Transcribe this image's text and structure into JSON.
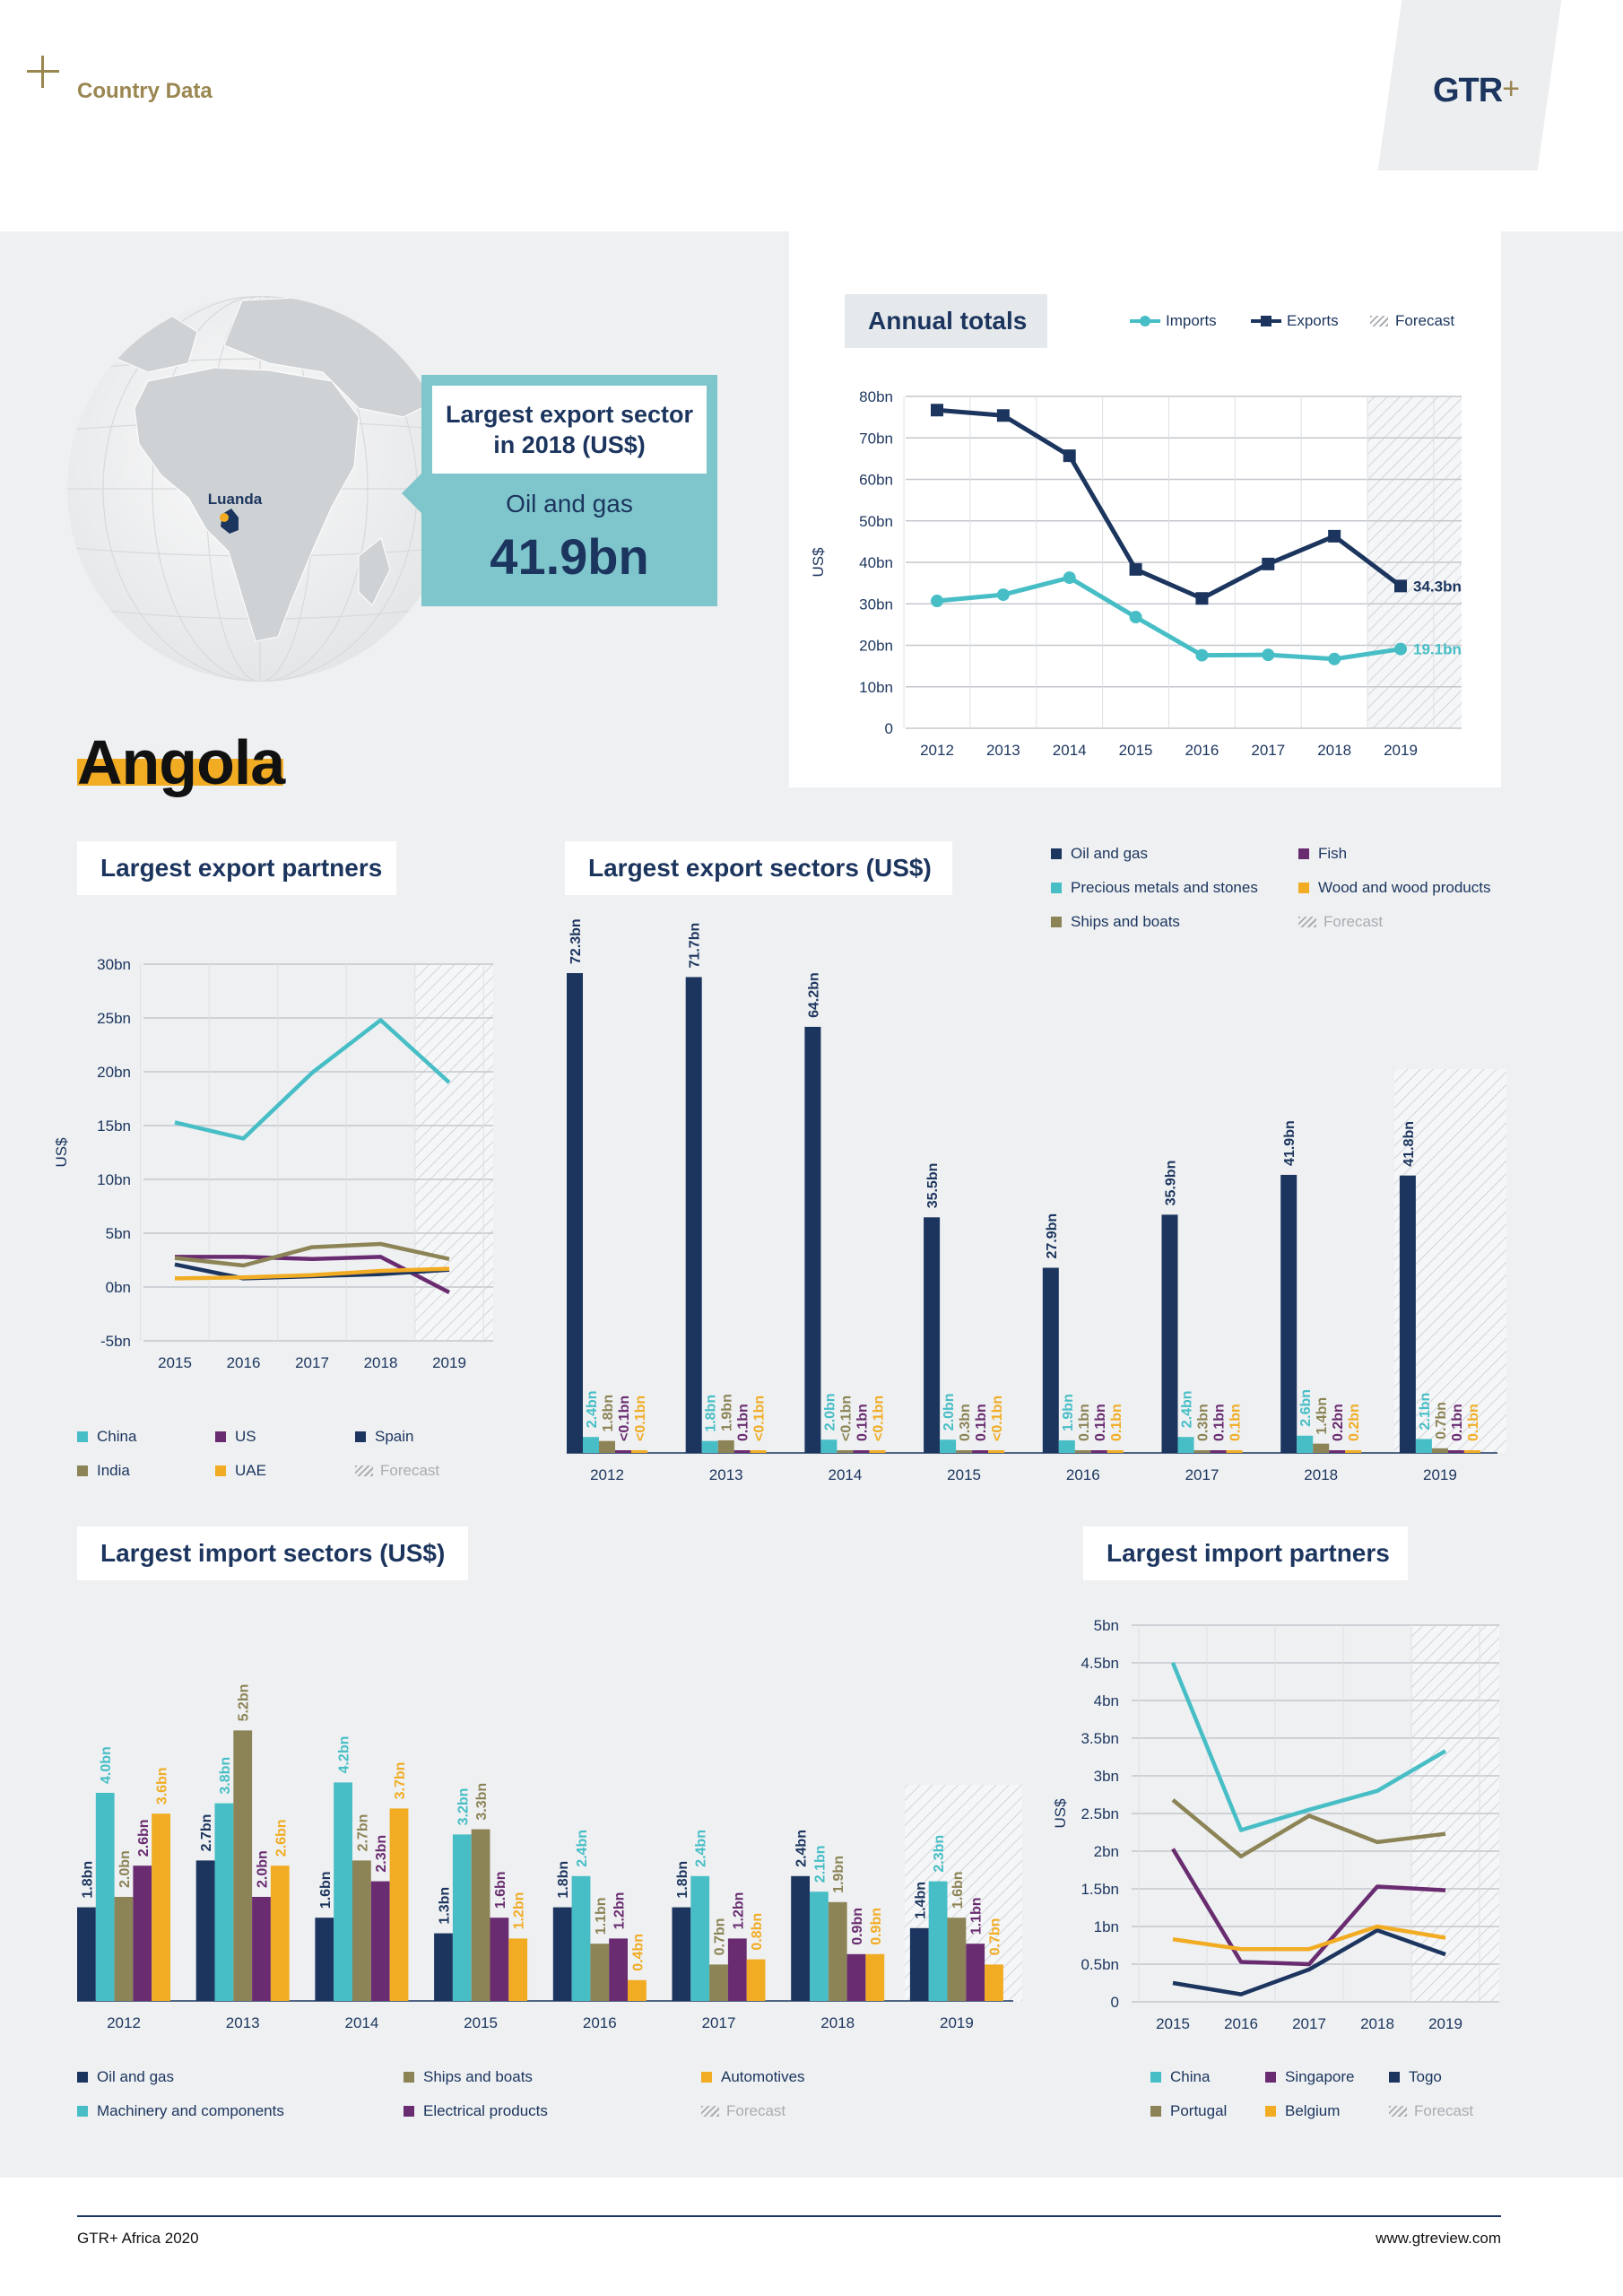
{
  "header": {
    "plus": "+",
    "section": "Country Data",
    "logo": "GTR",
    "logo_plus": "+"
  },
  "footer": {
    "left": "GTR+ Africa 2020",
    "right": "www.gtreview.com"
  },
  "country": "Angola",
  "map": {
    "city": "Luanda"
  },
  "callout": {
    "title_line1": "Largest export sector",
    "title_line2": "in 2018 (US$)",
    "sector": "Oil and gas",
    "value": "41.9bn"
  },
  "colors": {
    "navy": "#1c355e",
    "teal": "#47bec6",
    "olive": "#8c8456",
    "purple": "#6a2c70",
    "gold": "#f1ac24",
    "callout_bg": "#7ec6cc"
  },
  "labels": {
    "forecast": "Forecast",
    "usd": "US$"
  },
  "chart_data": [
    {
      "id": "annual_totals",
      "type": "line",
      "title": "Annual totals",
      "x": [
        "2012",
        "2013",
        "2014",
        "2015",
        "2016",
        "2017",
        "2018",
        "2019"
      ],
      "yticks": [
        "0",
        "10bn",
        "20bn",
        "30bn",
        "40bn",
        "50bn",
        "60bn",
        "70bn",
        "80bn"
      ],
      "ylim": [
        0,
        80
      ],
      "ylabel": "US$",
      "forecast_from": "2019",
      "series": [
        {
          "name": "Imports",
          "values": [
            30.7,
            32.2,
            36.3,
            26.8,
            17.6,
            17.7,
            16.7,
            19.1
          ],
          "color": "#47bec6",
          "marker": "circle",
          "end_label": "19.1bn"
        },
        {
          "name": "Exports",
          "values": [
            76.7,
            75.4,
            65.7,
            38.3,
            31.3,
            39.6,
            46.3,
            34.3
          ],
          "color": "#1c355e",
          "marker": "square",
          "end_label": "34.3bn"
        }
      ]
    },
    {
      "id": "export_partners",
      "type": "line",
      "title": "Largest export partners",
      "x": [
        "2015",
        "2016",
        "2017",
        "2018",
        "2019"
      ],
      "yticks": [
        "-5bn",
        "0bn",
        "5bn",
        "10bn",
        "15bn",
        "20bn",
        "25bn",
        "30bn"
      ],
      "ylim": [
        -5,
        30
      ],
      "ylabel": "US$",
      "forecast_from": "2019",
      "series": [
        {
          "name": "China",
          "values": [
            15.3,
            13.8,
            19.9,
            24.8,
            19.0
          ],
          "color": "#47bec6"
        },
        {
          "name": "US",
          "values": [
            2.8,
            2.8,
            2.6,
            2.8,
            -0.5
          ],
          "color": "#6a2c70"
        },
        {
          "name": "Spain",
          "values": [
            2.1,
            0.8,
            1.0,
            1.2,
            1.6
          ],
          "color": "#1c355e"
        },
        {
          "name": "India",
          "values": [
            2.7,
            2.0,
            3.7,
            4.0,
            2.6
          ],
          "color": "#8c8456"
        },
        {
          "name": "UAE",
          "values": [
            0.8,
            0.9,
            1.1,
            1.5,
            1.7
          ],
          "color": "#f1ac24"
        }
      ]
    },
    {
      "id": "export_sectors",
      "type": "bar",
      "title": "Largest export sectors (US$)",
      "categories": [
        "2012",
        "2013",
        "2014",
        "2015",
        "2016",
        "2017",
        "2018",
        "2019"
      ],
      "forecast_from": "2019",
      "series": [
        {
          "name": "Oil and gas",
          "color": "#1c355e",
          "values": [
            72.3,
            71.7,
            64.2,
            35.5,
            27.9,
            35.9,
            41.9,
            41.8
          ],
          "labels": [
            "72.3bn",
            "71.7bn",
            "64.2bn",
            "35.5bn",
            "27.9bn",
            "35.9bn",
            "41.9bn",
            "41.8bn"
          ]
        },
        {
          "name": "Precious metals and stones",
          "color": "#47bec6",
          "values": [
            2.4,
            1.8,
            2.0,
            2.0,
            1.9,
            2.4,
            2.6,
            2.1
          ],
          "labels": [
            "2.4bn",
            "1.8bn",
            "2.0bn",
            "2.0bn",
            "1.9bn",
            "2.4bn",
            "2.6bn",
            "2.1bn"
          ]
        },
        {
          "name": "Ships and boats",
          "color": "#8c8456",
          "values": [
            1.8,
            1.9,
            0.1,
            0.3,
            0.1,
            0.3,
            1.4,
            0.7
          ],
          "labels": [
            "1.8bn",
            "1.9bn",
            "<0.1bn",
            "0.3bn",
            "0.1bn",
            "0.3bn",
            "1.4bn",
            "0.7bn"
          ]
        },
        {
          "name": "Fish",
          "color": "#6a2c70",
          "values": [
            0.1,
            0.1,
            0.1,
            0.1,
            0.1,
            0.1,
            0.2,
            0.1
          ],
          "labels": [
            "<0.1bn",
            "0.1bn",
            "0.1bn",
            "0.1bn",
            "0.1bn",
            "0.1bn",
            "0.2bn",
            "0.1bn"
          ]
        },
        {
          "name": "Wood and wood products",
          "color": "#f1ac24",
          "values": [
            0.1,
            0.1,
            0.1,
            0.1,
            0.1,
            0.1,
            0.2,
            0.1
          ],
          "labels": [
            "<0.1bn",
            "<0.1bn",
            "<0.1bn",
            "<0.1bn",
            "0.1bn",
            "0.1bn",
            "0.2bn",
            "0.1bn"
          ]
        }
      ]
    },
    {
      "id": "import_sectors",
      "type": "bar",
      "title": "Largest import sectors (US$)",
      "categories": [
        "2012",
        "2013",
        "2014",
        "2015",
        "2016",
        "2017",
        "2018",
        "2019"
      ],
      "forecast_from": "2019",
      "series": [
        {
          "name": "Oil and gas",
          "color": "#1c355e",
          "values": [
            1.8,
            2.7,
            1.6,
            1.3,
            1.8,
            1.8,
            2.4,
            1.4
          ],
          "labels": [
            "1.8bn",
            "2.7bn",
            "1.6bn",
            "1.3bn",
            "1.8bn",
            "1.8bn",
            "2.4bn",
            "1.4bn"
          ]
        },
        {
          "name": "Machinery and components",
          "color": "#47bec6",
          "values": [
            4.0,
            3.8,
            4.2,
            3.2,
            2.4,
            2.4,
            2.1,
            2.3
          ],
          "labels": [
            "4.0bn",
            "3.8bn",
            "4.2bn",
            "3.2bn",
            "2.4bn",
            "2.4bn",
            "2.1bn",
            "2.3bn"
          ]
        },
        {
          "name": "Ships and boats",
          "color": "#8c8456",
          "values": [
            2.0,
            5.2,
            2.7,
            3.3,
            1.1,
            0.7,
            1.9,
            1.6
          ],
          "labels": [
            "2.0bn",
            "5.2bn",
            "2.7bn",
            "3.3bn",
            "1.1bn",
            "0.7bn",
            "1.9bn",
            "1.6bn"
          ]
        },
        {
          "name": "Electrical products",
          "color": "#6a2c70",
          "values": [
            2.6,
            2.0,
            2.3,
            1.6,
            1.2,
            1.2,
            0.9,
            1.1
          ],
          "labels": [
            "2.6bn",
            "2.0bn",
            "2.3bn",
            "1.6bn",
            "1.2bn",
            "1.2bn",
            "0.9bn",
            "1.1bn"
          ]
        },
        {
          "name": "Automotives",
          "color": "#f1ac24",
          "values": [
            3.6,
            2.6,
            3.7,
            1.2,
            0.4,
            0.8,
            0.9,
            0.7
          ],
          "labels": [
            "3.6bn",
            "2.6bn",
            "3.7bn",
            "1.2bn",
            "0.4bn",
            "0.8bn",
            "0.9bn",
            "0.7bn"
          ]
        }
      ]
    },
    {
      "id": "import_partners",
      "type": "line",
      "title": "Largest import partners",
      "x": [
        "2015",
        "2016",
        "2017",
        "2018",
        "2019"
      ],
      "yticks": [
        "0",
        "0.5bn",
        "1bn",
        "1.5bn",
        "2bn",
        "2.5bn",
        "3bn",
        "3.5bn",
        "4bn",
        "4.5bn",
        "5bn"
      ],
      "ylim": [
        0,
        5
      ],
      "ylabel": "US$",
      "forecast_from": "2019",
      "series": [
        {
          "name": "China",
          "values": [
            4.5,
            2.28,
            2.55,
            2.8,
            3.33
          ],
          "color": "#47bec6"
        },
        {
          "name": "Singapore",
          "values": [
            2.03,
            0.53,
            0.5,
            1.53,
            1.48
          ],
          "color": "#6a2c70"
        },
        {
          "name": "Togo",
          "values": [
            0.25,
            0.1,
            0.43,
            0.95,
            0.63
          ],
          "color": "#1c355e"
        },
        {
          "name": "Portugal",
          "values": [
            2.68,
            1.93,
            2.47,
            2.12,
            2.23
          ],
          "color": "#8c8456"
        },
        {
          "name": "Belgium",
          "values": [
            0.83,
            0.7,
            0.7,
            1.0,
            0.85
          ],
          "color": "#f1ac24"
        }
      ]
    }
  ]
}
